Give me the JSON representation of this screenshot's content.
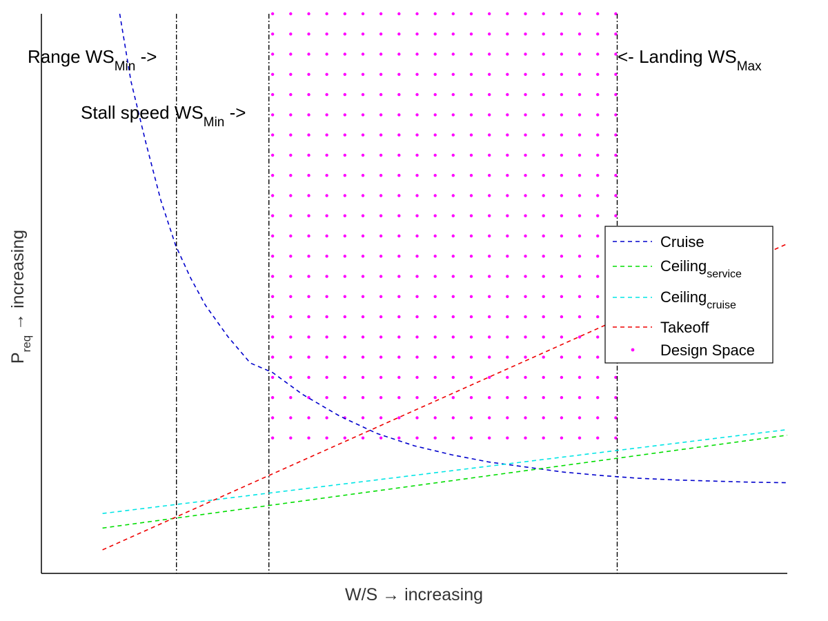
{
  "chart_data": {
    "type": "line",
    "title": "",
    "xlabel": "W/S → increasing",
    "ylabel_main": "P",
    "ylabel_sub": "req",
    "ylabel_rest": " → increasing",
    "xlim": [
      0,
      1
    ],
    "ylim": [
      0,
      1
    ],
    "grid": false,
    "ticks": false,
    "legend_position": "right",
    "series": [
      {
        "name": "Cruise",
        "color": "#0000CC",
        "dash": "6,5",
        "x": [
          0.105,
          0.12,
          0.14,
          0.16,
          0.18,
          0.2,
          0.22,
          0.25,
          0.28,
          0.31,
          0.35,
          0.4,
          0.45,
          0.5,
          0.55,
          0.6,
          0.65,
          0.7,
          0.75,
          0.8,
          0.85,
          0.9,
          0.95,
          1.0
        ],
        "y": [
          1.0,
          0.88,
          0.77,
          0.667,
          0.586,
          0.528,
          0.479,
          0.423,
          0.376,
          0.359,
          0.32,
          0.281,
          0.25,
          0.228,
          0.212,
          0.199,
          0.19,
          0.181,
          0.175,
          0.17,
          0.167,
          0.165,
          0.163,
          0.162
        ]
      },
      {
        "name": "Ceiling",
        "name_sub": "service",
        "color": "#00DD00",
        "dash": "6,5",
        "x": [
          0.082,
          1.0
        ],
        "y": [
          0.081,
          0.247
        ]
      },
      {
        "name": "Ceiling",
        "name_sub": "cruise",
        "color": "#00E5E5",
        "dash": "6,5",
        "x": [
          0.082,
          1.0
        ],
        "y": [
          0.107,
          0.257
        ]
      },
      {
        "name": "Takeoff",
        "color": "#EE0000",
        "dash": "6,5",
        "x": [
          0.082,
          1.0
        ],
        "y": [
          0.042,
          0.589
        ]
      },
      {
        "name": "Design Space",
        "color": "#FF00FF",
        "marker": "dot",
        "x_range": [
          0.31,
          0.77
        ],
        "x_count": 20,
        "y_range": [
          0.242,
          1.0
        ],
        "y_count": 22
      }
    ],
    "vlines": [
      {
        "x": 0.181,
        "color": "#000000"
      },
      {
        "x": 0.305,
        "color": "#000000"
      },
      {
        "x": 0.772,
        "color": "#000000"
      }
    ],
    "annotations": [
      {
        "id": "range",
        "main": "Range WS",
        "sub": "Min",
        "tail": " ->"
      },
      {
        "id": "stall",
        "main": "Stall speed WS",
        "sub": "Min",
        "tail": " ->"
      },
      {
        "id": "landing",
        "main": "<- Landing WS",
        "sub": "Max",
        "tail": ""
      }
    ]
  }
}
